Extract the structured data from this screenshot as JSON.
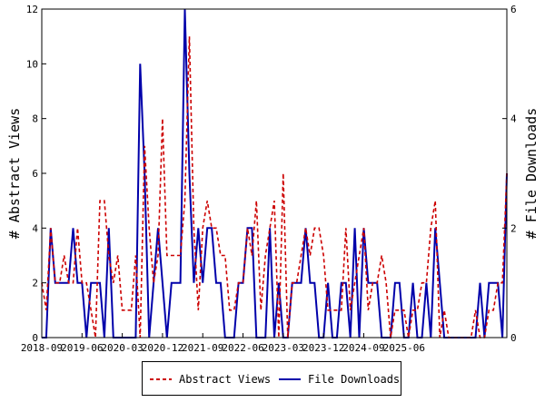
{
  "chart_data": {
    "type": "line",
    "title": "",
    "xlabel": "",
    "ylabel_left": "# Abstract Views",
    "ylabel_right": "# File Downloads",
    "ylim_left": [
      0,
      12
    ],
    "ylim_right": [
      0,
      6
    ],
    "yticks_left": [
      "0",
      "2",
      "4",
      "6",
      "8",
      "10",
      "12"
    ],
    "yticks_right": [
      "0",
      "2",
      "4",
      "6"
    ],
    "x_tick_labels": [
      "2018-09",
      "2019-06",
      "2020-03",
      "2020-12",
      "2021-09",
      "2022-06",
      "2023-03",
      "2023-12",
      "2024-09",
      "2025-06"
    ],
    "x_start": "2018-09",
    "x_end": "2025-09",
    "grid": false,
    "legend_position": "bottom",
    "series": [
      {
        "name": "Abstract Views",
        "axis": "left",
        "color": "#cc0000",
        "dash": "dashed",
        "values": [
          2,
          1,
          4,
          2,
          2,
          3,
          2,
          2,
          4,
          2,
          2,
          1,
          0,
          5,
          5,
          3,
          2,
          3,
          1,
          1,
          1,
          3,
          0,
          7,
          4,
          2,
          3,
          8,
          3,
          3,
          3,
          3,
          5,
          11,
          4,
          1,
          4,
          5,
          4,
          4,
          3,
          3,
          1,
          1,
          2,
          2,
          4,
          3,
          5,
          1,
          3,
          4,
          5,
          0,
          6,
          0,
          2,
          2,
          3,
          4,
          3,
          4,
          4,
          3,
          1,
          1,
          1,
          1,
          4,
          1,
          2,
          3,
          4,
          1,
          2,
          2,
          3,
          2,
          0,
          1,
          1,
          1,
          0,
          1,
          1,
          2,
          2,
          4,
          5,
          0,
          1,
          0,
          0,
          0,
          0,
          0,
          0,
          1,
          0,
          0,
          1,
          1,
          2,
          2,
          6
        ]
      },
      {
        "name": "File Downloads",
        "axis": "right",
        "color": "#0000aa",
        "dash": "solid",
        "values": [
          0,
          0,
          2,
          1,
          1,
          1,
          1,
          2,
          1,
          1,
          0,
          1,
          1,
          1,
          0,
          2,
          0,
          0,
          0,
          0,
          0,
          0,
          5,
          3,
          0,
          1,
          2,
          1,
          0,
          1,
          1,
          1,
          6,
          3,
          1,
          2,
          1,
          2,
          2,
          1,
          1,
          0,
          0,
          0,
          1,
          1,
          2,
          2,
          0,
          0,
          0,
          2,
          0,
          1,
          0,
          0,
          1,
          1,
          1,
          2,
          1,
          1,
          0,
          0,
          1,
          0,
          0,
          1,
          1,
          0,
          2,
          0,
          2,
          1,
          1,
          1,
          0,
          0,
          0,
          1,
          1,
          0,
          0,
          1,
          0,
          0,
          1,
          0,
          2,
          1,
          0,
          0,
          0,
          0,
          0,
          0,
          0,
          0,
          1,
          0,
          1,
          1,
          1,
          0,
          3
        ]
      }
    ]
  }
}
